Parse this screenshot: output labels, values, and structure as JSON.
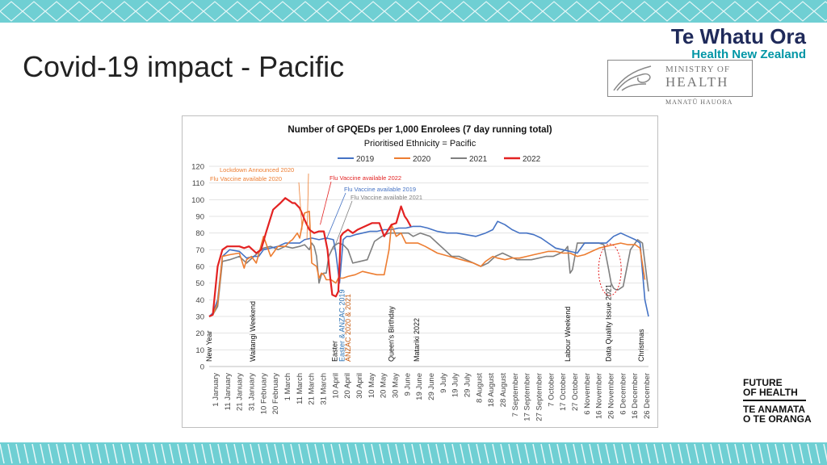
{
  "slide": {
    "title": "Covid-19 impact - Pacific"
  },
  "brand": {
    "te_whatu_ora": "Te Whatu Ora",
    "health_nz": "Health New Zealand",
    "ministry_line1": "MINISTRY OF",
    "ministry_line2": "HEALTH",
    "ministry_maori": "MANATŪ HAUORA",
    "foh_line1": "FUTURE",
    "foh_line2": "OF HEALTH",
    "foh_line3": "TE ANAMATA",
    "foh_line4": "O TE ORANGA"
  },
  "colors": {
    "band": "#6fcfd3",
    "s2019": "#4472c4",
    "s2020": "#ed7d31",
    "s2021": "#7f7f7f",
    "s2022": "#e32222"
  },
  "chart_data": {
    "type": "line",
    "title": "Number of GPQEDs per 1,000 Enrolees (7 day running total)",
    "subtitle": "Prioritised Ethnicity = Pacific",
    "ylim": [
      0,
      120
    ],
    "yticks": [
      0,
      10,
      20,
      30,
      40,
      50,
      60,
      70,
      80,
      90,
      100,
      110,
      120
    ],
    "x_tick_labels": [
      "1 January",
      "11 January",
      "21 January",
      "31 January",
      "10 February",
      "20 February",
      "1 March",
      "11 March",
      "21 March",
      "31 March",
      "10 April",
      "20 April",
      "30 April",
      "10 May",
      "20 May",
      "30 May",
      "9 June",
      "19 June",
      "29 June",
      "9 July",
      "19 July",
      "29 July",
      "8 August",
      "18 August",
      "28 August",
      "7 September",
      "17 September",
      "27 September",
      "7 October",
      "17 October",
      "27 October",
      "6 November",
      "16 November",
      "26 November",
      "6 December",
      "16 December",
      "26 December"
    ],
    "x_unit": "day of year",
    "legend_position": "top",
    "series": [
      {
        "name": "2019",
        "x": [
          1,
          4,
          8,
          12,
          18,
          26,
          32,
          38,
          42,
          46,
          52,
          58,
          64,
          70,
          76,
          80,
          86,
          92,
          98,
          104,
          106,
          109,
          112,
          115,
          118,
          122,
          128,
          134,
          140,
          146,
          152,
          158,
          164,
          170,
          176,
          182,
          190,
          198,
          206,
          214,
          222,
          230,
          236,
          240,
          246,
          252,
          258,
          264,
          270,
          276,
          282,
          288,
          294,
          300,
          306,
          312,
          318,
          324,
          330,
          336,
          342,
          348,
          354,
          358,
          362,
          365
        ],
        "values": [
          30,
          32,
          40,
          66,
          70,
          69,
          65,
          66,
          66,
          70,
          71,
          72,
          74,
          74,
          74,
          76,
          77,
          76,
          77,
          76,
          68,
          50,
          76,
          78,
          78,
          79,
          80,
          81,
          81,
          82,
          82,
          83,
          83,
          84,
          84,
          83,
          81,
          80,
          80,
          79,
          78,
          80,
          82,
          87,
          85,
          82,
          80,
          80,
          79,
          77,
          74,
          71,
          70,
          69,
          68,
          74,
          74,
          74,
          74,
          78,
          80,
          78,
          76,
          74,
          40,
          30
        ]
      },
      {
        "name": "2020",
        "x": [
          1,
          4,
          8,
          12,
          18,
          26,
          30,
          32,
          36,
          40,
          46,
          52,
          58,
          64,
          68,
          70,
          72,
          74,
          76,
          80,
          84,
          86,
          90,
          92,
          94,
          96,
          98,
          102,
          106,
          108,
          112,
          116,
          122,
          128,
          134,
          140,
          146,
          150,
          152,
          156,
          160,
          164,
          168,
          174,
          180,
          190,
          200,
          210,
          220,
          226,
          230,
          236,
          240,
          246,
          252,
          258,
          264,
          270,
          276,
          282,
          288,
          294,
          300,
          306,
          312,
          318,
          324,
          330,
          336,
          342,
          348,
          354,
          358,
          362
        ],
        "values": [
          30,
          31,
          38,
          66,
          67,
          68,
          59,
          64,
          66,
          62,
          78,
          66,
          72,
          72,
          75,
          76,
          78,
          80,
          77,
          92,
          93,
          62,
          60,
          53,
          56,
          55,
          52,
          52,
          50,
          53,
          53,
          54,
          55,
          57,
          56,
          55,
          55,
          70,
          85,
          78,
          80,
          74,
          74,
          74,
          72,
          68,
          66,
          64,
          62,
          60,
          63,
          66,
          65,
          64,
          65,
          65,
          66,
          67,
          68,
          69,
          69,
          68,
          68,
          66,
          67,
          69,
          71,
          72,
          73,
          74,
          73,
          73,
          71,
          52
        ]
      },
      {
        "name": "2021",
        "x": [
          1,
          4,
          8,
          12,
          18,
          26,
          32,
          38,
          46,
          52,
          58,
          64,
          70,
          76,
          80,
          84,
          86,
          88,
          90,
          92,
          94,
          96,
          98,
          100,
          104,
          108,
          112,
          116,
          120,
          126,
          132,
          138,
          144,
          150,
          156,
          162,
          166,
          170,
          176,
          184,
          190,
          196,
          202,
          208,
          214,
          220,
          226,
          232,
          238,
          244,
          250,
          256,
          262,
          268,
          274,
          280,
          286,
          292,
          296,
          298,
          300,
          302,
          306,
          312,
          318,
          324,
          328,
          332,
          334,
          336,
          338,
          340,
          344,
          350,
          356,
          360,
          365
        ],
        "values": [
          30,
          31,
          36,
          63,
          64,
          66,
          62,
          66,
          71,
          72,
          70,
          72,
          71,
          72,
          73,
          70,
          74,
          72,
          66,
          50,
          55,
          56,
          56,
          66,
          72,
          74,
          73,
          70,
          62,
          63,
          64,
          75,
          78,
          80,
          80,
          80,
          80,
          78,
          80,
          78,
          74,
          70,
          66,
          66,
          64,
          62,
          60,
          62,
          66,
          68,
          66,
          64,
          64,
          64,
          65,
          66,
          66,
          68,
          70,
          72,
          56,
          58,
          74,
          74,
          74,
          74,
          73,
          58,
          50,
          47,
          46,
          46,
          48,
          70,
          76,
          74,
          45
        ]
      },
      {
        "name": "2022",
        "x": [
          1,
          4,
          8,
          12,
          16,
          20,
          26,
          30,
          34,
          40,
          44,
          48,
          54,
          60,
          64,
          66,
          68,
          70,
          72,
          76,
          80,
          84,
          88,
          92,
          96,
          99,
          101,
          103,
          106,
          108,
          110,
          112,
          116,
          120,
          124,
          130,
          136,
          142,
          146,
          152,
          156,
          160,
          163,
          165,
          168
        ],
        "values": [
          30,
          31,
          60,
          70,
          72,
          72,
          72,
          71,
          72,
          68,
          70,
          80,
          94,
          98,
          101,
          100,
          99,
          98,
          98,
          95,
          88,
          82,
          80,
          81,
          81,
          70,
          55,
          43,
          42,
          45,
          78,
          80,
          82,
          80,
          82,
          84,
          86,
          86,
          78,
          85,
          86,
          96,
          90,
          88,
          84
        ]
      }
    ],
    "annotations": [
      {
        "text": "Lockdown Announced 2020",
        "color": "#ed7d31"
      },
      {
        "text": "Flu Vaccine available  2020",
        "color": "#ed7d31"
      },
      {
        "text": "Flu Vaccine available  2022",
        "color": "#e32222"
      },
      {
        "text": "Flu Vaccine available  2019",
        "color": "#4472c4"
      },
      {
        "text": "Flu Vaccine available  2021",
        "color": "#7f7f7f"
      }
    ],
    "event_labels": [
      {
        "text": "New Year",
        "day": 1,
        "color": "#111"
      },
      {
        "text": "Waitangi Weekend",
        "day": 37,
        "color": "#111"
      },
      {
        "text": "Easter",
        "day": 105,
        "color": "#111"
      },
      {
        "text": "Easter & ANZAC 2019",
        "day": 111,
        "color": "#2e74b5"
      },
      {
        "text": "ANZAC  2020 & 2021",
        "day": 116,
        "color": "#c55a11"
      },
      {
        "text": "Queen's Birthday",
        "day": 152,
        "color": "#111"
      },
      {
        "text": "Matariki 2022",
        "day": 173,
        "color": "#111"
      },
      {
        "text": "Labour Weekend",
        "day": 298,
        "color": "#111"
      },
      {
        "text": "Data Quality Issue 2021",
        "day": 332,
        "color": "#111"
      },
      {
        "text": "Christmas",
        "day": 359,
        "color": "#111"
      }
    ]
  }
}
